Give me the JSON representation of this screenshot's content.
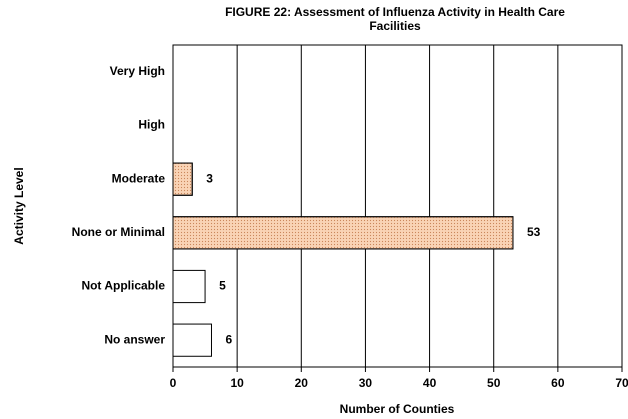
{
  "chart_data": {
    "type": "hbar",
    "title": [
      "FIGURE  22: Assessment of Influenza Activity  in Health Care",
      "Facilities"
    ],
    "x_label": "Number of Counties",
    "y_label": "Activity Level",
    "categories": [
      "Very High",
      "High",
      "Moderate",
      "None or Minimal",
      "Not Applicable",
      "No answer"
    ],
    "values": [
      null,
      null,
      3,
      53,
      5,
      6
    ],
    "colors": [
      "#ffffff",
      "#ffffff",
      "#f9d3b5",
      "#f9d3b5",
      "#ffffff",
      "#ffffff"
    ],
    "xlim": [
      0,
      70
    ],
    "xticks": [
      0,
      10,
      20,
      30,
      40,
      50,
      60,
      70
    ],
    "grid": true
  }
}
